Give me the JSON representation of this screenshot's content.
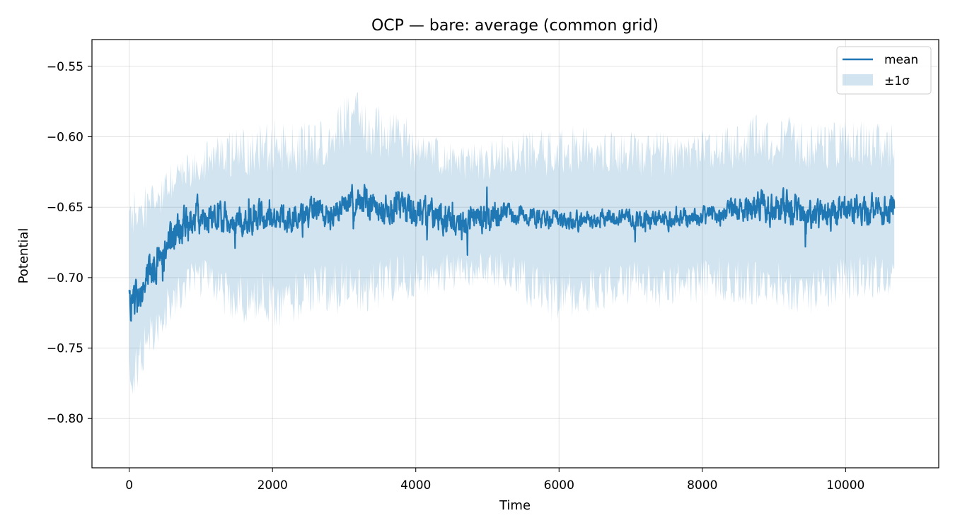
{
  "chart_data": {
    "type": "line",
    "title": "OCP — bare: average (common grid)",
    "xlabel": "Time",
    "ylabel": "Potential",
    "xlim": [
      -520,
      11300
    ],
    "ylim": [
      -0.835,
      -0.531
    ],
    "x_ticks": [
      0,
      2000,
      4000,
      6000,
      8000,
      10000
    ],
    "x_tick_labels": [
      "0",
      "2000",
      "4000",
      "6000",
      "8000",
      "10000"
    ],
    "y_ticks": [
      -0.55,
      -0.6,
      -0.65,
      -0.7,
      -0.75,
      -0.8
    ],
    "y_tick_labels": [
      "−0.55",
      "−0.60",
      "−0.65",
      "−0.70",
      "−0.75",
      "−0.80"
    ],
    "grid": true,
    "legend_position": "top-right",
    "x_range": [
      0,
      10680
    ],
    "series": [
      {
        "name": "mean",
        "color": "#1f77b4",
        "x": [
          0,
          100,
          200,
          300,
          400,
          500,
          600,
          700,
          800,
          900,
          1000,
          1200,
          1400,
          1600,
          1800,
          2000,
          2200,
          2400,
          2600,
          2800,
          3000,
          3200,
          3400,
          3600,
          3800,
          4000,
          4200,
          4400,
          4600,
          4800,
          5000,
          5200,
          5400,
          5600,
          5800,
          6000,
          6200,
          6400,
          6600,
          6800,
          7000,
          7200,
          7400,
          7600,
          7800,
          8000,
          8200,
          8400,
          8600,
          8800,
          9000,
          9200,
          9400,
          9600,
          9800,
          10000,
          10200,
          10400,
          10600,
          10680
        ],
        "values": [
          -0.718,
          -0.715,
          -0.705,
          -0.695,
          -0.688,
          -0.68,
          -0.672,
          -0.667,
          -0.663,
          -0.66,
          -0.658,
          -0.655,
          -0.658,
          -0.66,
          -0.658,
          -0.66,
          -0.658,
          -0.655,
          -0.652,
          -0.655,
          -0.645,
          -0.645,
          -0.648,
          -0.652,
          -0.65,
          -0.655,
          -0.656,
          -0.658,
          -0.66,
          -0.657,
          -0.656,
          -0.653,
          -0.655,
          -0.657,
          -0.66,
          -0.658,
          -0.66,
          -0.659,
          -0.658,
          -0.656,
          -0.658,
          -0.66,
          -0.658,
          -0.66,
          -0.658,
          -0.656,
          -0.655,
          -0.652,
          -0.65,
          -0.648,
          -0.652,
          -0.65,
          -0.655,
          -0.658,
          -0.656,
          -0.65,
          -0.65,
          -0.652,
          -0.652,
          -0.65
        ]
      },
      {
        "name": "±1σ",
        "color": "#1f77b4",
        "x": [
          0,
          100,
          200,
          300,
          400,
          500,
          600,
          700,
          800,
          900,
          1000,
          1200,
          1400,
          1600,
          1800,
          2000,
          2200,
          2400,
          2600,
          2800,
          3000,
          3200,
          3400,
          3600,
          3800,
          4000,
          4200,
          4400,
          4600,
          4800,
          5000,
          5200,
          5400,
          5600,
          5800,
          6000,
          6200,
          6400,
          6600,
          6800,
          7000,
          7200,
          7400,
          7600,
          7800,
          8000,
          8200,
          8400,
          8600,
          8800,
          9000,
          9200,
          9400,
          9600,
          9800,
          10000,
          10200,
          10400,
          10600,
          10680
        ],
        "lower": [
          -0.775,
          -0.765,
          -0.752,
          -0.74,
          -0.732,
          -0.724,
          -0.716,
          -0.71,
          -0.706,
          -0.702,
          -0.7,
          -0.705,
          -0.712,
          -0.715,
          -0.712,
          -0.718,
          -0.716,
          -0.712,
          -0.708,
          -0.71,
          -0.705,
          -0.708,
          -0.706,
          -0.702,
          -0.7,
          -0.7,
          -0.698,
          -0.696,
          -0.696,
          -0.694,
          -0.694,
          -0.696,
          -0.7,
          -0.705,
          -0.712,
          -0.715,
          -0.712,
          -0.71,
          -0.708,
          -0.706,
          -0.704,
          -0.705,
          -0.706,
          -0.706,
          -0.704,
          -0.702,
          -0.7,
          -0.702,
          -0.705,
          -0.704,
          -0.702,
          -0.706,
          -0.708,
          -0.71,
          -0.708,
          -0.7,
          -0.7,
          -0.7,
          -0.7,
          -0.698
        ],
        "upper": [
          -0.655,
          -0.655,
          -0.652,
          -0.65,
          -0.645,
          -0.64,
          -0.632,
          -0.628,
          -0.625,
          -0.622,
          -0.62,
          -0.612,
          -0.612,
          -0.612,
          -0.61,
          -0.605,
          -0.61,
          -0.608,
          -0.604,
          -0.605,
          -0.59,
          -0.588,
          -0.594,
          -0.6,
          -0.598,
          -0.61,
          -0.612,
          -0.616,
          -0.62,
          -0.618,
          -0.618,
          -0.612,
          -0.612,
          -0.612,
          -0.612,
          -0.608,
          -0.608,
          -0.61,
          -0.612,
          -0.61,
          -0.612,
          -0.614,
          -0.612,
          -0.615,
          -0.612,
          -0.61,
          -0.61,
          -0.608,
          -0.604,
          -0.6,
          -0.604,
          -0.602,
          -0.606,
          -0.608,
          -0.606,
          -0.605,
          -0.605,
          -0.606,
          -0.608,
          -0.606
        ]
      }
    ]
  },
  "legend": {
    "mean_label": "mean",
    "band_label": "±1σ"
  }
}
